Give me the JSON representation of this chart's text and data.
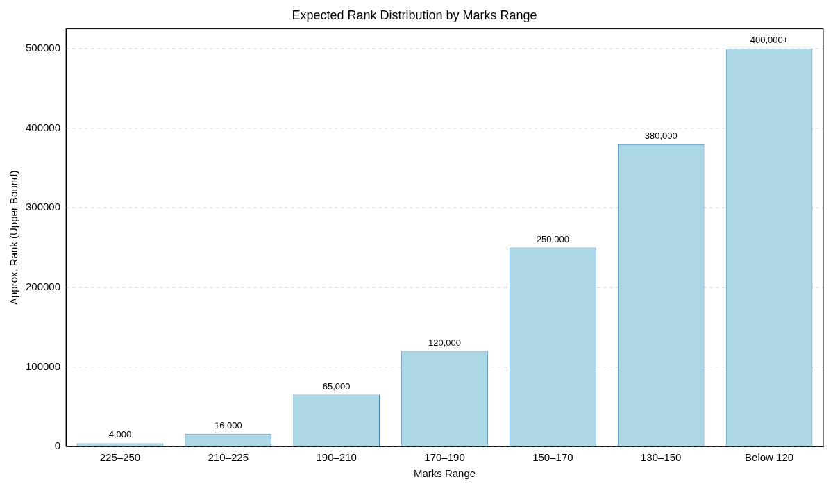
{
  "chart_data": {
    "type": "bar",
    "title": "Expected Rank Distribution by Marks Range",
    "xlabel": "Marks Range",
    "ylabel": "Approx. Rank (Upper Bound)",
    "categories": [
      "225–250",
      "210–225",
      "190–210",
      "170–190",
      "150–170",
      "130–150",
      "Below 120"
    ],
    "values": [
      4000,
      16000,
      65000,
      120000,
      250000,
      380000,
      500000
    ],
    "value_labels": [
      "4,000",
      "16,000",
      "65,000",
      "120,000",
      "250,000",
      "380,000",
      "400,000+"
    ],
    "color": "#add8e6",
    "ylim": [
      0,
      525000
    ],
    "yticks": [
      0,
      100000,
      200000,
      300000,
      400000,
      500000
    ],
    "grid": "y",
    "legend": false
  }
}
